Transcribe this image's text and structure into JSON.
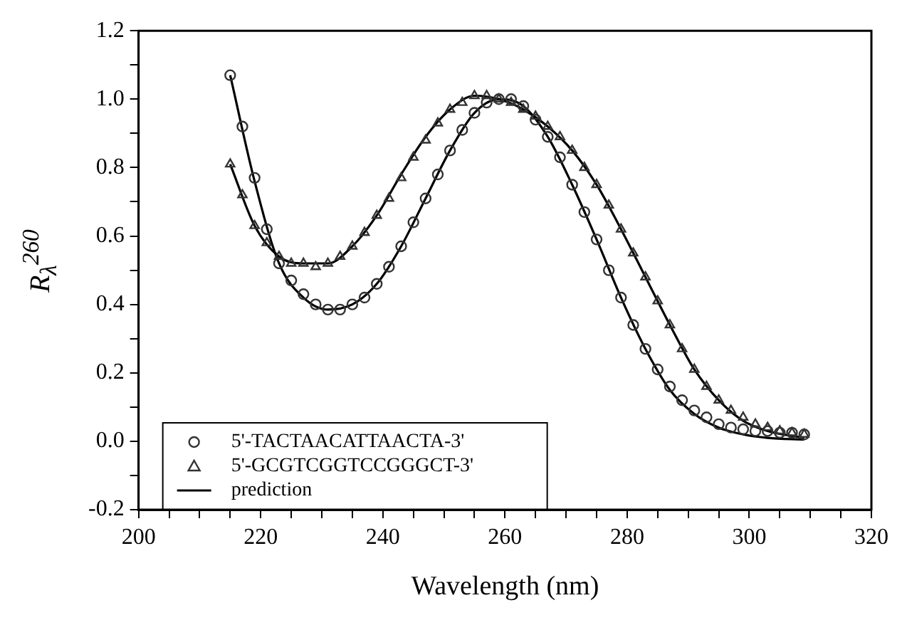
{
  "chart_data": {
    "type": "scatter",
    "xlabel": "Wavelength (nm)",
    "ylabel": "R$_{λ}$$^{260}$",
    "xlim": [
      200,
      320
    ],
    "xticks": [
      200,
      {
        "value": 205,
        "label": null
      },
      {
        "value": 210,
        "label": null
      },
      {
        "value": 215,
        "label": null
      },
      220,
      {
        "value": 225,
        "label": null
      },
      {
        "value": 230,
        "label": null
      },
      {
        "value": 235,
        "label": null
      },
      240,
      {
        "value": 245,
        "label": null
      },
      {
        "value": 250,
        "label": null
      },
      {
        "value": 255,
        "label": null
      },
      260,
      {
        "value": 265,
        "label": null
      },
      {
        "value": 270,
        "label": null
      },
      {
        "value": 275,
        "label": null
      },
      280,
      {
        "value": 285,
        "label": null
      },
      {
        "value": 290,
        "label": null
      },
      {
        "value": 295,
        "label": null
      },
      300,
      {
        "value": 305,
        "label": null
      },
      {
        "value": 310,
        "label": null
      },
      {
        "value": 315,
        "label": null
      },
      320
    ],
    "ylim": [
      -0.2,
      1.2
    ],
    "yticks": [
      {
        "value": -0.2,
        "label": "-0.2"
      },
      {
        "value": -0.1,
        "label": null
      },
      {
        "value": 0,
        "label": "0.0"
      },
      {
        "value": 0.1,
        "label": null
      },
      {
        "value": 0.2,
        "label": "0.2"
      },
      {
        "value": 0.3,
        "label": null
      },
      {
        "value": 0.4,
        "label": "0.4"
      },
      {
        "value": 0.5,
        "label": null
      },
      {
        "value": 0.6,
        "label": "0.6"
      },
      {
        "value": 0.7,
        "label": null
      },
      {
        "value": 0.8,
        "label": "0.8"
      },
      {
        "value": 0.9,
        "label": null
      },
      {
        "value": 1.0,
        "label": "1.0"
      },
      {
        "value": 1.1,
        "label": null
      },
      {
        "value": 1.2,
        "label": "1.2"
      }
    ],
    "grid": false,
    "legend": "bottom left",
    "series": [
      {
        "name": "5'-TACTAACATTAACTA-3'",
        "type": "scatter",
        "marker": "circle",
        "color": "#333333",
        "x": [
          215,
          217,
          219,
          221,
          223,
          225,
          227,
          229,
          231,
          233,
          235,
          237,
          239,
          241,
          243,
          245,
          247,
          249,
          251,
          253,
          255,
          257,
          259,
          261,
          263,
          265,
          267,
          269,
          271,
          273,
          275,
          277,
          279,
          281,
          283,
          285,
          287,
          289,
          291,
          293,
          295,
          297,
          299,
          301,
          303,
          305,
          307,
          309
        ],
        "values": [
          1.07,
          0.92,
          0.77,
          0.62,
          0.52,
          0.47,
          0.43,
          0.4,
          0.385,
          0.385,
          0.4,
          0.42,
          0.46,
          0.51,
          0.57,
          0.64,
          0.71,
          0.78,
          0.85,
          0.91,
          0.96,
          0.99,
          1.0,
          1.0,
          0.98,
          0.94,
          0.89,
          0.83,
          0.75,
          0.67,
          0.59,
          0.5,
          0.42,
          0.34,
          0.27,
          0.21,
          0.16,
          0.12,
          0.09,
          0.07,
          0.05,
          0.04,
          0.035,
          0.03,
          0.03,
          0.025,
          0.025,
          0.02
        ]
      },
      {
        "name": "5'-GCGTCGGTCCGGGCT-3'",
        "type": "scatter",
        "marker": "triangle",
        "color": "#333333",
        "x": [
          215,
          217,
          219,
          221,
          223,
          225,
          227,
          229,
          231,
          233,
          235,
          237,
          239,
          241,
          243,
          245,
          247,
          249,
          251,
          253,
          255,
          257,
          259,
          261,
          263,
          265,
          267,
          269,
          271,
          273,
          275,
          277,
          279,
          281,
          283,
          285,
          287,
          289,
          291,
          293,
          295,
          297,
          299,
          301,
          303,
          305,
          307,
          309
        ],
        "values": [
          0.81,
          0.72,
          0.63,
          0.58,
          0.54,
          0.52,
          0.52,
          0.51,
          0.52,
          0.54,
          0.57,
          0.61,
          0.66,
          0.71,
          0.77,
          0.83,
          0.88,
          0.93,
          0.97,
          0.99,
          1.01,
          1.01,
          1.0,
          0.99,
          0.97,
          0.95,
          0.92,
          0.89,
          0.85,
          0.8,
          0.75,
          0.69,
          0.62,
          0.55,
          0.48,
          0.41,
          0.34,
          0.27,
          0.21,
          0.16,
          0.12,
          0.09,
          0.07,
          0.05,
          0.04,
          0.03,
          0.025,
          0.02
        ]
      },
      {
        "name": "prediction",
        "type": "line",
        "marker": "none",
        "color": "#000000",
        "x": [
          215,
          219,
          223,
          227,
          231,
          235,
          239,
          243,
          247,
          251,
          255,
          259,
          263,
          267,
          271,
          275,
          279,
          283,
          287,
          291,
          295,
          299,
          303,
          309
        ],
        "values": [
          1.07,
          0.76,
          0.52,
          0.42,
          0.385,
          0.4,
          0.46,
          0.57,
          0.71,
          0.85,
          0.96,
          1.0,
          0.98,
          0.89,
          0.75,
          0.59,
          0.42,
          0.27,
          0.15,
          0.08,
          0.04,
          0.02,
          0.01,
          0.005
        ]
      },
      {
        "type": "line",
        "marker": "none",
        "color": "#000000",
        "x": [
          215,
          219,
          223,
          227,
          231,
          235,
          239,
          243,
          247,
          251,
          255,
          259,
          263,
          267,
          271,
          275,
          279,
          283,
          287,
          291,
          295,
          299,
          303,
          309
        ],
        "values": [
          0.81,
          0.63,
          0.54,
          0.52,
          0.52,
          0.57,
          0.66,
          0.78,
          0.89,
          0.97,
          1.01,
          1.0,
          0.97,
          0.92,
          0.85,
          0.75,
          0.62,
          0.48,
          0.34,
          0.21,
          0.12,
          0.06,
          0.03,
          0.01
        ]
      }
    ]
  }
}
